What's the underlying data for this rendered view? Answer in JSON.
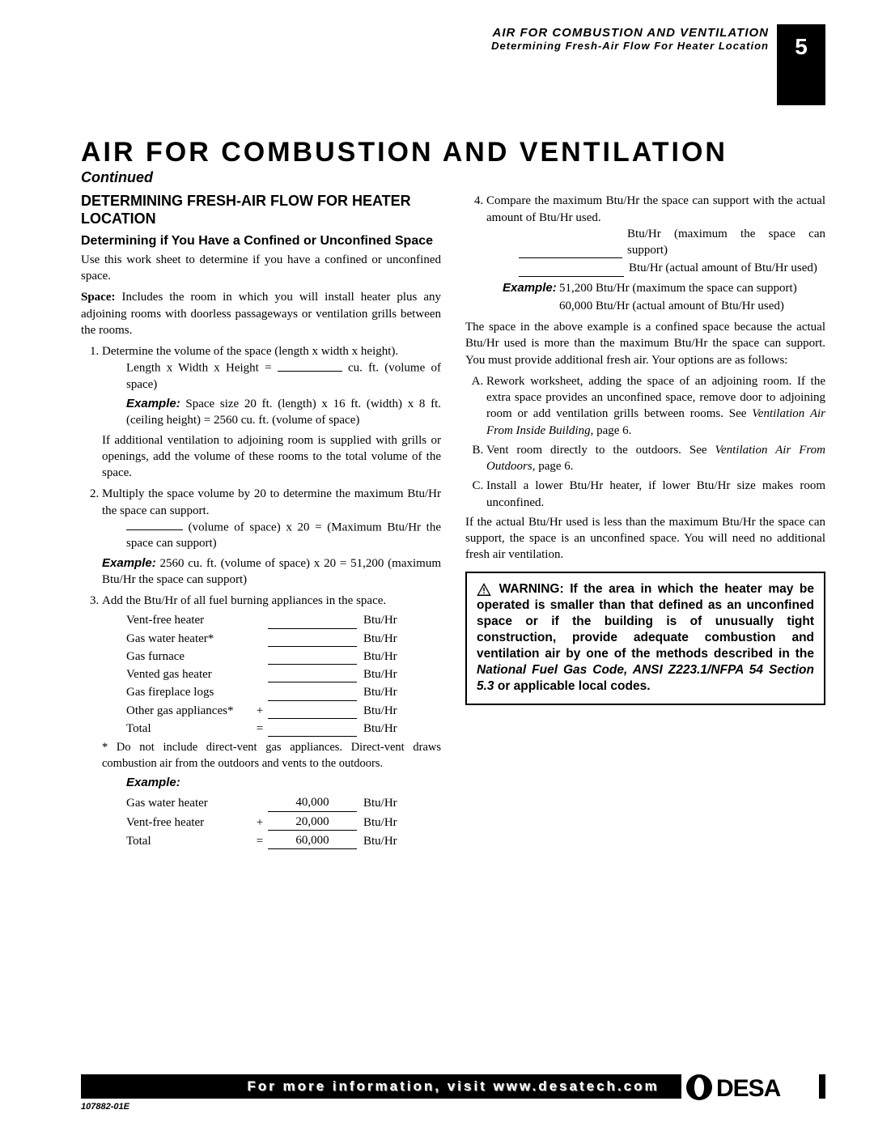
{
  "header": {
    "line1": "AIR FOR COMBUSTION AND VENTILATION",
    "line2": "Determining Fresh-Air Flow For Heater Location",
    "page_number": "5"
  },
  "title": "AIR FOR COMBUSTION AND VENTILATION",
  "continued": "Continued",
  "left": {
    "h2": "DETERMINING FRESH-AIR FLOW FOR HEATER LOCATION",
    "h3": "Determining if You Have a Confined or Unconfined Space",
    "intro": "Use this work sheet to determine if you have a confined or unconfined space.",
    "space_label": "Space:",
    "space_def": " Includes the room in which you will install heater plus any adjoining rooms with doorless passageways or ventilation grills between the rooms.",
    "step1": "Determine the volume of the space (length x width x height).",
    "step1_formula_pre": "Length x Width x Height = ",
    "step1_formula_post": " cu. ft. (volume of space)",
    "step1_example_label": "Example:",
    "step1_example": " Space size 20 ft. (length) x 16 ft. (width) x 8 ft. (ceiling height) = 2560 cu. ft. (volume of space)",
    "step1_note": "If additional ventilation to adjoining room is supplied with grills or openings, add the volume of these rooms to the total volume of the space.",
    "step2": "Multiply the space volume by 20 to determine the maximum Btu/Hr the space can support.",
    "step2_formula": " (volume of space) x 20 = (Maximum Btu/Hr the space can support)",
    "step2_example_label": "Example:",
    "step2_example": " 2560 cu. ft. (volume of space) x 20 = 51,200 (maximum Btu/Hr the space can support)",
    "step3": "Add the Btu/Hr of all fuel burning appliances in the space.",
    "appliances": [
      {
        "name": "Vent-free heater",
        "op": "",
        "val": "",
        "unit": "Btu/Hr"
      },
      {
        "name": "Gas water heater*",
        "op": "",
        "val": "",
        "unit": "Btu/Hr"
      },
      {
        "name": "Gas furnace",
        "op": "",
        "val": "",
        "unit": "Btu/Hr"
      },
      {
        "name": "Vented gas heater",
        "op": "",
        "val": "",
        "unit": "Btu/Hr"
      },
      {
        "name": "Gas fireplace logs",
        "op": "",
        "val": "",
        "unit": "Btu/Hr"
      },
      {
        "name": "Other gas appliances*",
        "op": "+",
        "val": "",
        "unit": "Btu/Hr"
      },
      {
        "name": "Total",
        "op": "=",
        "val": "",
        "unit": "Btu/Hr"
      }
    ],
    "footnote": "* Do not include direct-vent gas appliances. Direct-vent draws combustion air from the outdoors and vents to the outdoors.",
    "example_label": "Example:",
    "example_rows": [
      {
        "name": "Gas water heater",
        "op": "",
        "val": "40,000",
        "unit": "Btu/Hr"
      },
      {
        "name": "Vent-free heater",
        "op": "+",
        "val": "20,000",
        "unit": "Btu/Hr"
      },
      {
        "name": "Total",
        "op": "=",
        "val": "60,000",
        "unit": "Btu/Hr"
      }
    ]
  },
  "right": {
    "step4": "Compare the maximum Btu/Hr the space can support with the actual amount of Btu/Hr used.",
    "btu_line1": "Btu/Hr (maximum the space can support)",
    "btu_line2": "Btu/Hr (actual amount of Btu/Hr used)",
    "ex_label": "Example:",
    "ex_line1": "51,200 Btu/Hr (maximum the space can support)",
    "ex_line2": "60,000 Btu/Hr (actual amount of Btu/Hr used)",
    "para1": "The space in the above example is a confined space because the actual Btu/Hr used is more than the maximum Btu/Hr the space can support. You must provide additional fresh air. Your options are as follows:",
    "optA_a": "Rework worksheet, adding the space of an adjoining room. If the extra space provides an unconfined space, remove door to adjoining room or add ventilation grills between rooms. See ",
    "optA_i": "Ventilation Air From Inside Building",
    "optA_b": ", page 6.",
    "optB_a": "Vent room directly to the outdoors. See ",
    "optB_i": "Ventilation Air From Outdoors",
    "optB_b": ", page 6.",
    "optC": "Install a lower Btu/Hr heater, if lower Btu/Hr size makes room unconfined.",
    "para2": "If the actual Btu/Hr used is less than the maximum Btu/Hr the space can support, the space is an unconfined space. You will need no additional fresh air ventilation.",
    "warning_a": " WARNING: If the area in which the heater may be operated is smaller than that defined as an unconfined space or if the building is of unusually tight construction, provide adequate combustion and ventilation air by one of the methods described in the ",
    "warning_i": "National Fuel Gas Code, ANSI Z223.1/NFPA 54 Section 5.3",
    "warning_b": " or applicable local codes."
  },
  "footer": {
    "text": "For more information, visit www.desatech.com",
    "doc_id": "107882-01E",
    "logo_text": "DESA"
  }
}
